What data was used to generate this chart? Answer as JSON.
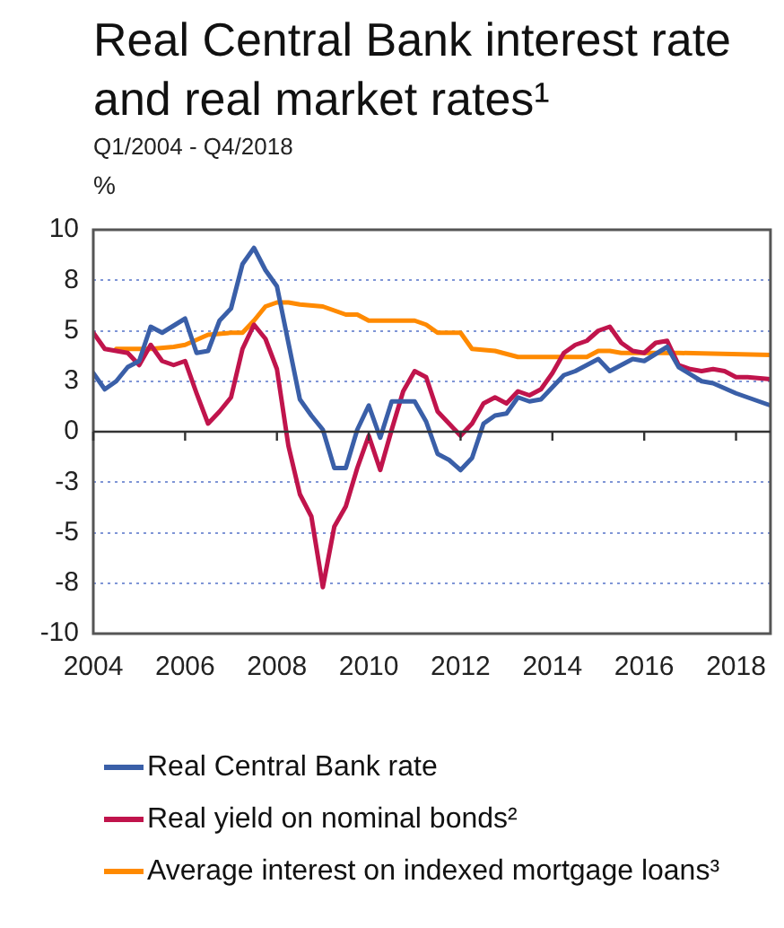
{
  "chart_data": {
    "type": "line",
    "title": "Real Central Bank interest rate and real market rates¹",
    "subtitle": "Q1/2004 - Q4/2018",
    "ylabel": "%",
    "xlim": [
      2004,
      2018.75
    ],
    "xticks": [
      2004,
      2006,
      2008,
      2010,
      2012,
      2014,
      2016,
      2018
    ],
    "ylim": [
      -10,
      10
    ],
    "yticks": [
      {
        "value": -10,
        "label": "-10"
      },
      {
        "value": -7.5,
        "label": "-8"
      },
      {
        "value": -5,
        "label": "-5"
      },
      {
        "value": -2.5,
        "label": "-3"
      },
      {
        "value": 0,
        "label": "0"
      },
      {
        "value": 2.5,
        "label": "3"
      },
      {
        "value": 5,
        "label": "5"
      },
      {
        "value": 7.5,
        "label": "8"
      },
      {
        "value": 10,
        "label": "10"
      }
    ],
    "grid": "y",
    "legend": "bottom",
    "marker": "none",
    "line_style": "solid",
    "series": [
      {
        "name": "Real Central Bank rate",
        "color": "#3a5fa8",
        "x": [
          2004,
          2004.25,
          2004.5,
          2004.75,
          2005,
          2005.25,
          2005.5,
          2006,
          2006.25,
          2006.5,
          2006.75,
          2007,
          2007.25,
          2007.5,
          2007.75,
          2008,
          2008.25,
          2008.5,
          2008.75,
          2009,
          2009.25,
          2009.5,
          2009.75,
          2010,
          2010.25,
          2010.5,
          2011,
          2011.25,
          2011.5,
          2011.75,
          2012,
          2012.25,
          2012.5,
          2012.75,
          2013,
          2013.25,
          2013.5,
          2013.75,
          2014.25,
          2014.5,
          2015,
          2015.25,
          2015.75,
          2016,
          2016.5,
          2016.75,
          2017.25,
          2017.5,
          2018,
          2018.25,
          2018.75
        ],
        "values": [
          2.9,
          2.1,
          2.5,
          3.2,
          3.5,
          5.2,
          4.9,
          5.6,
          3.9,
          4.0,
          5.5,
          6.1,
          8.3,
          9.1,
          8.0,
          7.2,
          4.4,
          1.6,
          0.8,
          0.1,
          -1.8,
          -1.8,
          0.1,
          1.3,
          -0.3,
          1.5,
          1.5,
          0.5,
          -1.1,
          -1.4,
          -1.9,
          -1.3,
          0.4,
          0.8,
          0.9,
          1.7,
          1.5,
          1.6,
          2.8,
          3.0,
          3.6,
          3.0,
          3.6,
          3.5,
          4.2,
          3.2,
          2.5,
          2.4,
          1.9,
          1.7,
          1.3
        ]
      },
      {
        "name": "Real yield on nominal bonds²",
        "color": "#c0144c",
        "x": [
          2004,
          2004.25,
          2004.75,
          2005,
          2005.25,
          2005.5,
          2005.75,
          2006,
          2006.25,
          2006.5,
          2006.75,
          2007,
          2007.25,
          2007.5,
          2007.75,
          2008,
          2008.25,
          2008.5,
          2008.75,
          2009,
          2009.25,
          2009.5,
          2009.75,
          2010,
          2010.25,
          2010.5,
          2010.75,
          2011,
          2011.25,
          2011.5,
          2011.75,
          2012,
          2012.25,
          2012.5,
          2012.75,
          2013,
          2013.25,
          2013.5,
          2013.75,
          2014,
          2014.25,
          2014.5,
          2014.75,
          2015,
          2015.25,
          2015.5,
          2015.75,
          2016,
          2016.25,
          2016.5,
          2016.75,
          2017,
          2017.25,
          2017.5,
          2017.75,
          2018,
          2018.25,
          2018.75
        ],
        "values": [
          4.9,
          4.1,
          3.9,
          3.3,
          4.3,
          3.5,
          3.3,
          3.5,
          1.9,
          0.4,
          1.0,
          1.7,
          4.1,
          5.3,
          4.6,
          3.1,
          -0.7,
          -3.1,
          -4.2,
          -7.7,
          -4.7,
          -3.7,
          -1.8,
          -0.2,
          -1.9,
          0.1,
          2.0,
          3.0,
          2.7,
          1.0,
          0.4,
          -0.2,
          0.4,
          1.4,
          1.7,
          1.4,
          2.0,
          1.8,
          2.1,
          2.9,
          3.9,
          4.3,
          4.5,
          5.0,
          5.2,
          4.4,
          4.0,
          3.9,
          4.4,
          4.5,
          3.3,
          3.1,
          3.0,
          3.1,
          3.0,
          2.7,
          2.7,
          2.6
        ]
      },
      {
        "name": "Average interest on indexed mortgage loans³",
        "color": "#ff8a00",
        "x": [
          2004.5,
          2005.25,
          2005.75,
          2006,
          2006.5,
          2007,
          2007.25,
          2007.5,
          2007.75,
          2008,
          2008.25,
          2008.5,
          2009,
          2009.25,
          2009.5,
          2009.75,
          2010,
          2011,
          2011.25,
          2011.5,
          2012,
          2012.25,
          2012.75,
          2013.25,
          2013.75,
          2014.75,
          2015,
          2015.25,
          2015.5,
          2016.75,
          2018.75
        ],
        "values": [
          4.1,
          4.1,
          4.2,
          4.3,
          4.8,
          4.9,
          4.9,
          5.5,
          6.2,
          6.4,
          6.4,
          6.3,
          6.2,
          6.0,
          5.8,
          5.8,
          5.5,
          5.5,
          5.3,
          4.9,
          4.9,
          4.1,
          4.0,
          3.7,
          3.7,
          3.7,
          4.0,
          4.0,
          3.9,
          3.9,
          3.8
        ]
      }
    ]
  }
}
